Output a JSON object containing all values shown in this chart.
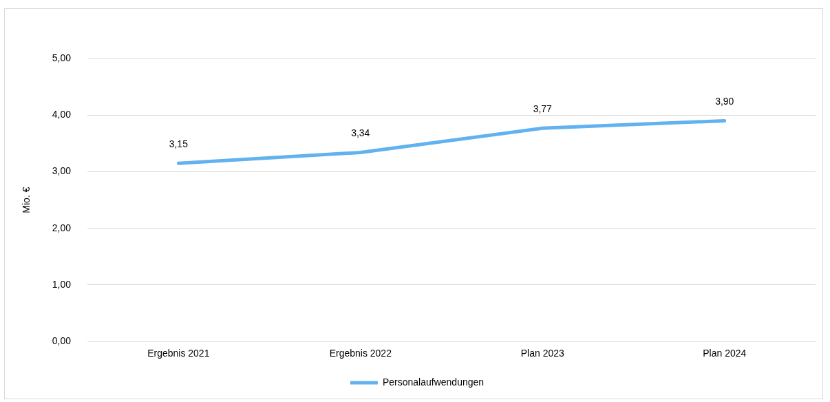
{
  "chart_data": {
    "type": "line",
    "ylabel": "Mio. €",
    "categories": [
      "Ergebnis 2021",
      "Ergebnis 2022",
      "Plan 2023",
      "Plan 2024"
    ],
    "series": [
      {
        "name": "Personalaufwendungen",
        "color": "#62b2f0",
        "values": [
          3.15,
          3.34,
          3.77,
          3.9
        ],
        "value_labels": [
          "3,15",
          "3,34",
          "3,77",
          "3,90"
        ]
      }
    ],
    "ylim": [
      0,
      5
    ],
    "yticks": [
      {
        "value": 0,
        "label": "0,00"
      },
      {
        "value": 1,
        "label": "1,00"
      },
      {
        "value": 2,
        "label": "2,00"
      },
      {
        "value": 3,
        "label": "3,00"
      },
      {
        "value": 4,
        "label": "4,00"
      },
      {
        "value": 5,
        "label": "5,00"
      }
    ],
    "grid": "y",
    "legend": "bottom",
    "marker": "none",
    "line_style": "solid"
  }
}
